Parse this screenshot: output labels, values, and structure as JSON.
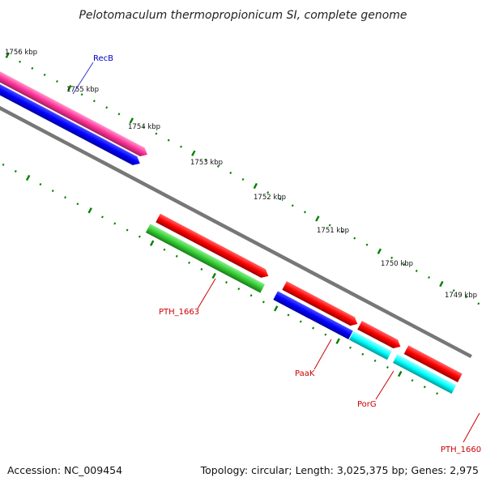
{
  "title": "Pelotomaculum thermopropionicum SI, complete genome",
  "accession_text": "Accession: NC_009454",
  "summary_text": "Topology: circular; Length: 3,025,375 bp; Genes: 2,975",
  "kbp_labels": [
    "1756 kbp",
    "1755 kbp",
    "1754 kbp",
    "1753 kbp",
    "1752 kbp",
    "1751 kbp",
    "1750 kbp",
    "1749 kbp"
  ],
  "gene_labels": {
    "recb": "RecB",
    "pth_1663": "PTH_1663",
    "paak": "PaaK",
    "porg": "PorG",
    "pth_1660": "PTH_1660"
  },
  "colors": {
    "backbone": "#808080",
    "pink_feature": "#ff3399",
    "blue_feature": "#0000ff",
    "red_feature": "#ff0000",
    "green_feature": "#33cc33",
    "cyan_feature": "#00ffff",
    "tick": "#008000",
    "label_red": "#cc0000",
    "label_blue": "#0000cc"
  }
}
